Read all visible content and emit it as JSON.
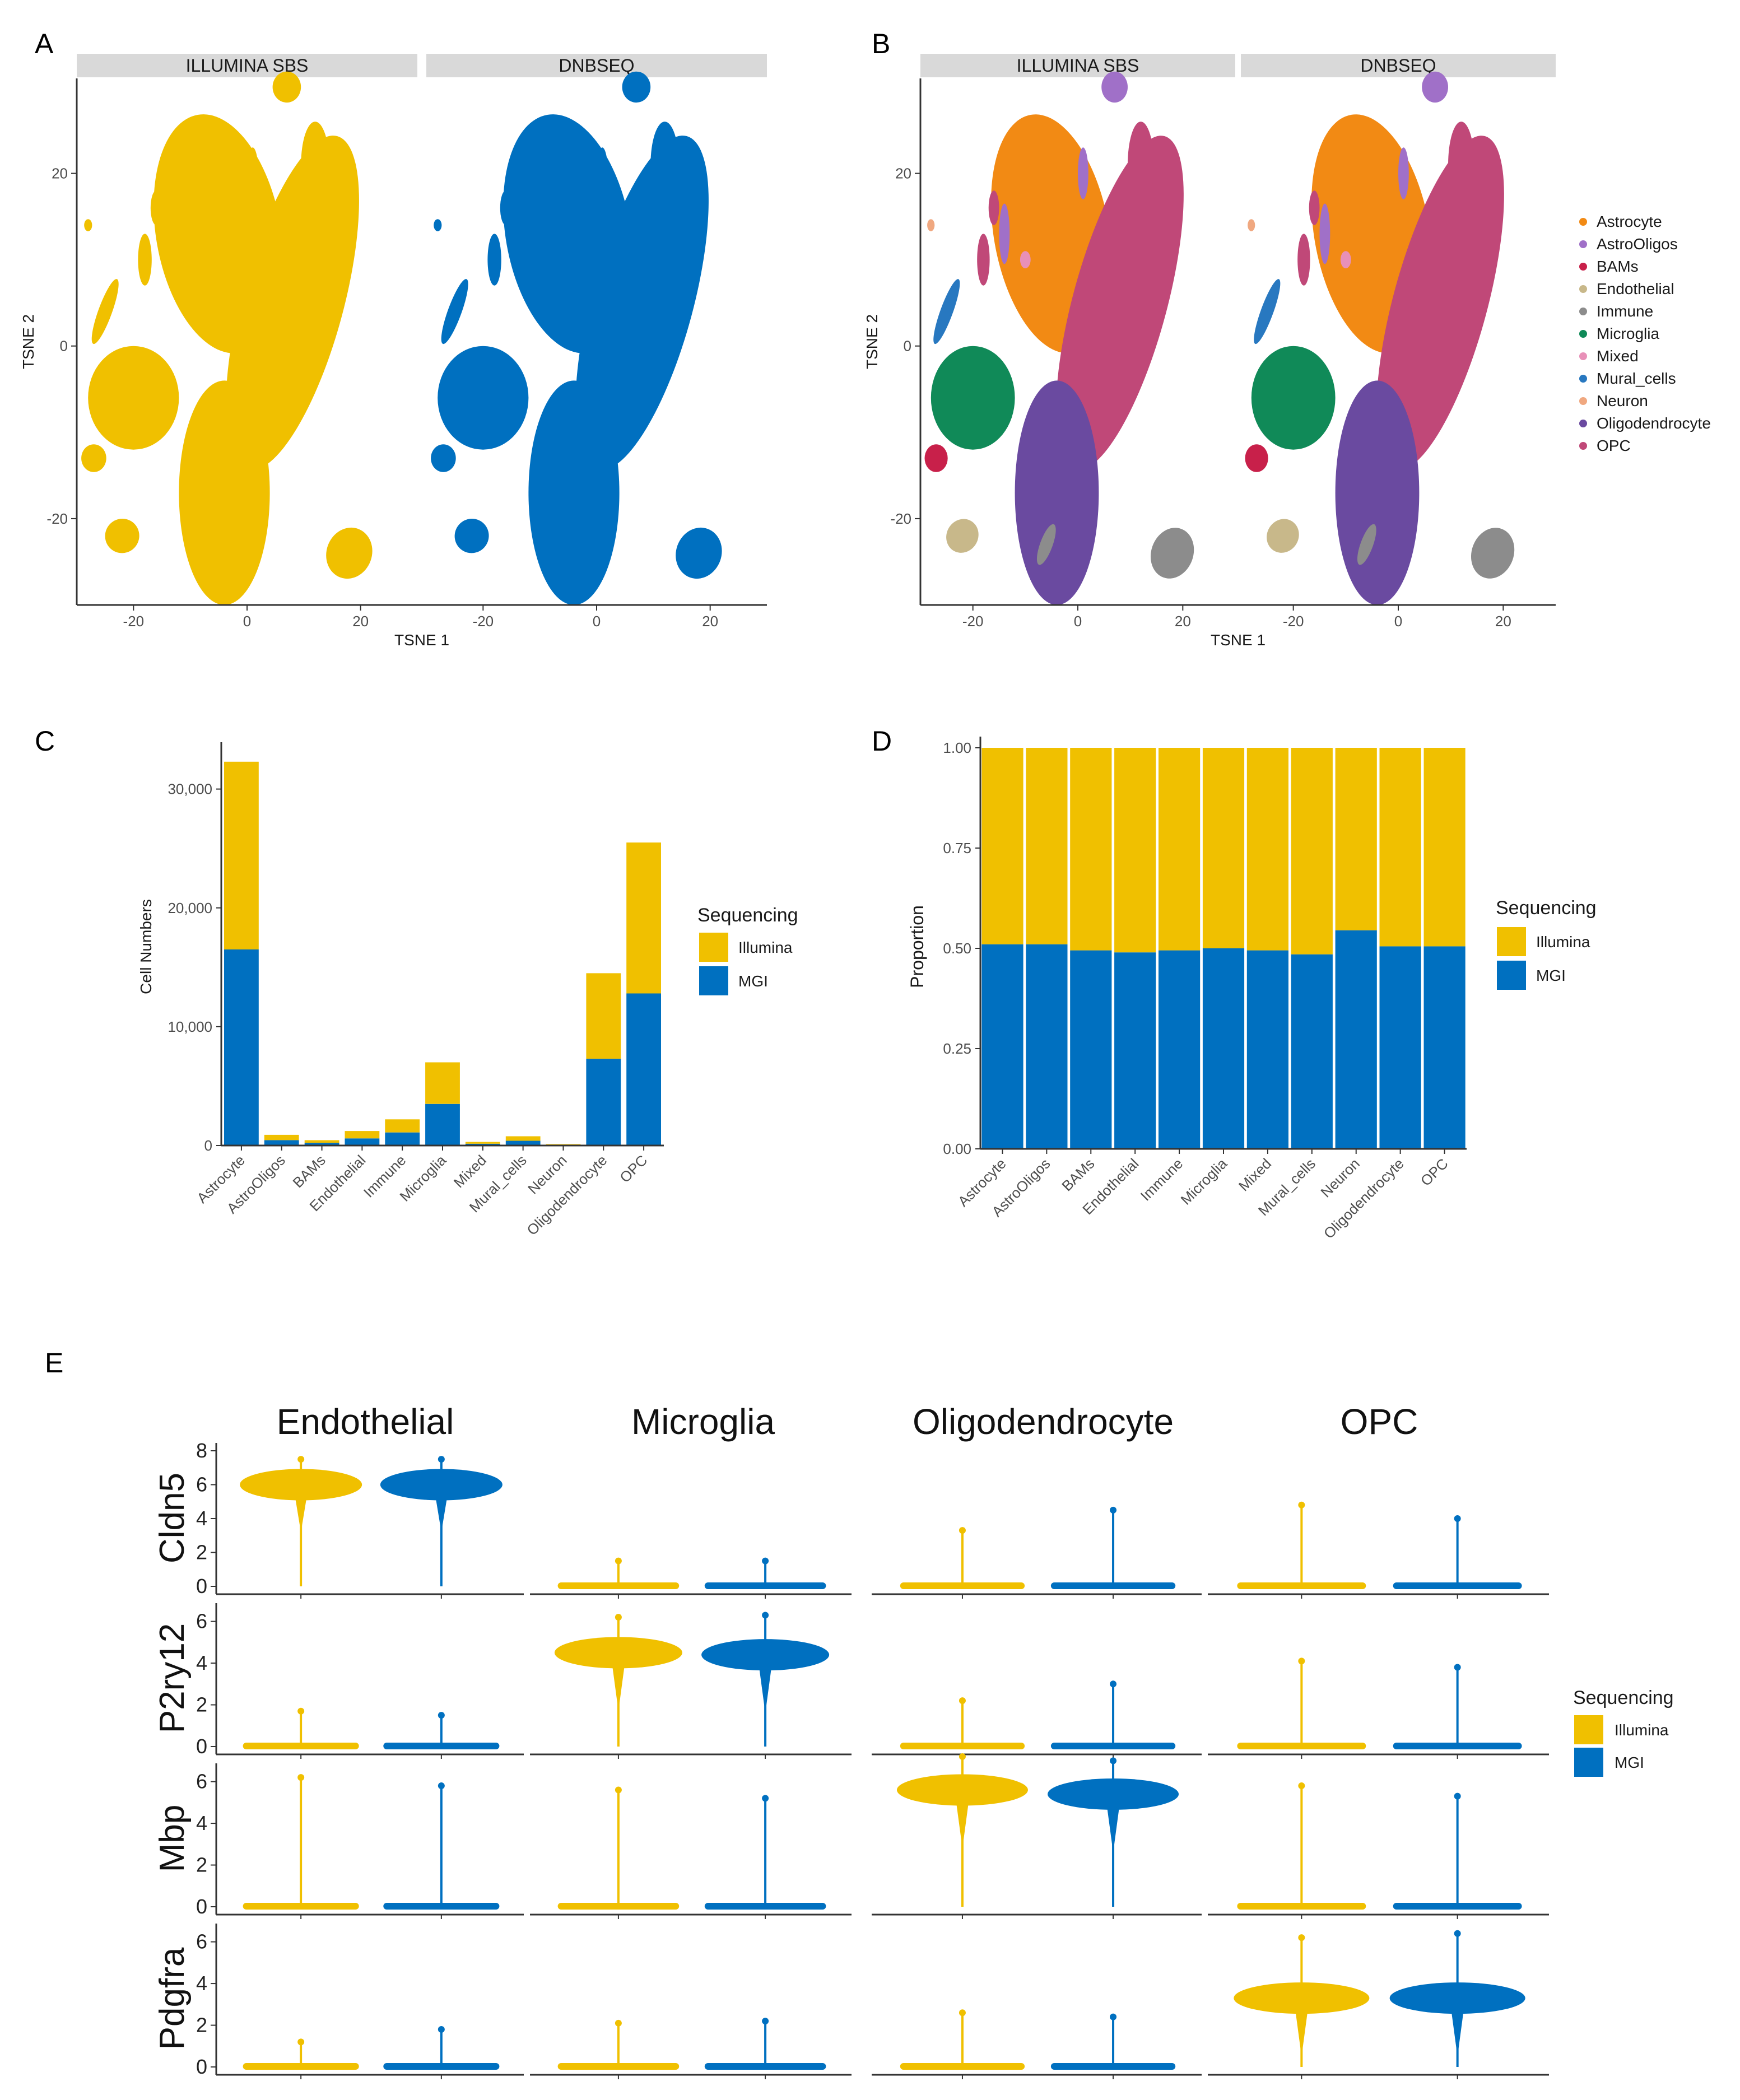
{
  "panel_labels": [
    "A",
    "B",
    "C",
    "D",
    "E"
  ],
  "colors": {
    "illumina": "#f0c000",
    "mgi": "#0070c0",
    "strip": "#d9d9d9"
  },
  "tsne": {
    "strips": [
      "ILLUMINA SBS",
      "DNBSEQ"
    ],
    "xlabel": "TSNE 1",
    "ylabel": "TSNE 2",
    "xticks": [
      "-20",
      "0",
      "20"
    ],
    "yticks": [
      "20",
      "0",
      "-20"
    ],
    "cell_types": [
      "Astrocyte",
      "AstroOligos",
      "BAMs",
      "Endothelial",
      "Immune",
      "Microglia",
      "Mixed",
      "Mural_cells",
      "Neuron",
      "Oligodendrocyte",
      "OPC"
    ],
    "cell_type_colors": [
      "#f28a14",
      "#a070c8",
      "#c8204a",
      "#c8b88a",
      "#8c8c8c",
      "#108a58",
      "#e890b8",
      "#2878c0",
      "#f0a880",
      "#6a4aa0",
      "#c04878"
    ]
  },
  "chart_data": [
    {
      "id": "C",
      "type": "bar",
      "stacked": true,
      "title": "",
      "xlabel": "",
      "ylabel": "Cell Numbers",
      "ylim": [
        0,
        33000
      ],
      "yticks": [
        "0",
        "10,000",
        "20,000",
        "30,000"
      ],
      "categories": [
        "Astrocyte",
        "AstroOligos",
        "BAMs",
        "Endothelial",
        "Immune",
        "Microglia",
        "Mixed",
        "Mural_cells",
        "Neuron",
        "Oligodendrocyte",
        "OPC"
      ],
      "series": [
        {
          "name": "MGI",
          "values": [
            16500,
            450,
            230,
            600,
            1100,
            3500,
            150,
            400,
            60,
            7300,
            12800
          ]
        },
        {
          "name": "Illumina",
          "values": [
            15800,
            450,
            220,
            620,
            1100,
            3500,
            150,
            380,
            50,
            7200,
            12700
          ]
        }
      ],
      "legend_title": "Sequencing",
      "legend_labels": [
        "Illumina",
        "MGI"
      ]
    },
    {
      "id": "D",
      "type": "bar",
      "stacked": true,
      "title": "",
      "xlabel": "",
      "ylabel": "Proportion",
      "ylim": [
        0,
        1
      ],
      "yticks": [
        "0.00",
        "0.25",
        "0.50",
        "0.75",
        "1.00"
      ],
      "categories": [
        "Astrocyte",
        "AstroOligos",
        "BAMs",
        "Endothelial",
        "Immune",
        "Microglia",
        "Mixed",
        "Mural_cells",
        "Neuron",
        "Oligodendrocyte",
        "OPC"
      ],
      "series": [
        {
          "name": "MGI",
          "values": [
            0.51,
            0.51,
            0.495,
            0.49,
            0.495,
            0.5,
            0.495,
            0.485,
            0.545,
            0.505,
            0.505
          ]
        },
        {
          "name": "Illumina",
          "values": [
            0.49,
            0.49,
            0.505,
            0.51,
            0.505,
            0.5,
            0.505,
            0.515,
            0.455,
            0.495,
            0.495
          ]
        }
      ],
      "legend_title": "Sequencing",
      "legend_labels": [
        "Illumina",
        "MGI"
      ]
    },
    {
      "id": "E",
      "type": "violin",
      "title": "",
      "columns": [
        "Endothelial",
        "Microglia",
        "Oligodendrocyte",
        "OPC"
      ],
      "genes": [
        {
          "name": "Cldn5",
          "yticks": [
            "0",
            "2",
            "4",
            "6",
            "8"
          ],
          "ymax": 8
        },
        {
          "name": "P2ry12",
          "yticks": [
            "0",
            "2",
            "4",
            "6"
          ],
          "ymax": 6.5
        },
        {
          "name": "Mbp",
          "yticks": [
            "0",
            "2",
            "4",
            "6"
          ],
          "ymax": 6.5
        },
        {
          "name": "Pdgfra",
          "yticks": [
            "0",
            "2",
            "4",
            "6"
          ],
          "ymax": 6.5
        }
      ],
      "median_expression_illumina": [
        [
          6,
          0,
          0,
          0
        ],
        [
          0,
          4.5,
          0,
          0
        ],
        [
          0,
          0,
          5.6,
          0
        ],
        [
          0,
          0,
          0,
          3.3
        ]
      ],
      "median_expression_mgi": [
        [
          6,
          0,
          0,
          0
        ],
        [
          0,
          4.4,
          0,
          0
        ],
        [
          0,
          0,
          5.4,
          0
        ],
        [
          0,
          0,
          0,
          3.3
        ]
      ],
      "max_expression_illumina": [
        [
          7.5,
          1.5,
          3.3,
          4.8
        ],
        [
          1.7,
          6.2,
          2.2,
          4.1
        ],
        [
          6.2,
          5.6,
          7.2,
          5.8
        ],
        [
          1.2,
          2.1,
          2.6,
          6.2
        ]
      ],
      "max_expression_mgi": [
        [
          7.5,
          1.5,
          4.5,
          4.0
        ],
        [
          1.5,
          6.3,
          3.0,
          3.8
        ],
        [
          5.8,
          5.2,
          7.0,
          5.3
        ],
        [
          1.8,
          2.2,
          2.4,
          6.4
        ]
      ],
      "legend_title": "Sequencing",
      "legend_labels": [
        "Illumina",
        "MGI"
      ]
    }
  ]
}
